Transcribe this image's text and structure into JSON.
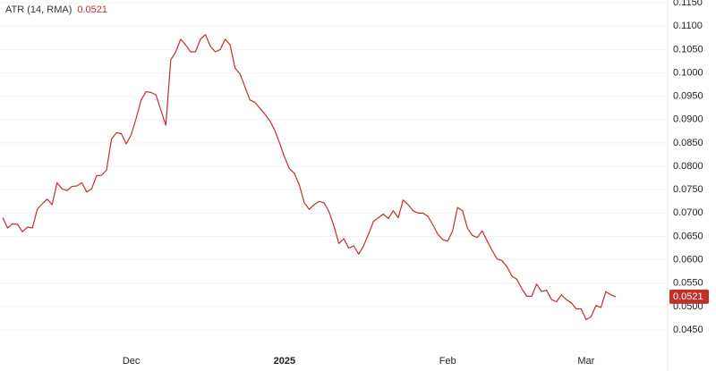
{
  "chart_data": {
    "type": "line",
    "legend_title": "ATR (14, RMA)",
    "categories": [
      null,
      null,
      null,
      null,
      null,
      null,
      null,
      null,
      null,
      null,
      null,
      null,
      null,
      null,
      null,
      null,
      null,
      null,
      null,
      null,
      null,
      null,
      null,
      null,
      null,
      null,
      "Dec",
      null,
      null,
      null,
      null,
      null,
      null,
      null,
      null,
      null,
      null,
      null,
      null,
      null,
      null,
      null,
      null,
      null,
      null,
      null,
      null,
      null,
      null,
      null,
      null,
      null,
      null,
      null,
      null,
      null,
      null,
      "2025",
      null,
      null,
      null,
      null,
      null,
      null,
      null,
      null,
      null,
      null,
      null,
      null,
      null,
      null,
      null,
      null,
      null,
      null,
      null,
      null,
      null,
      null,
      null,
      null,
      null,
      null,
      null,
      null,
      null,
      null,
      null,
      null,
      "Feb",
      null,
      null,
      null,
      null,
      null,
      null,
      null,
      null,
      null,
      null,
      null,
      null,
      null,
      null,
      null,
      null,
      null,
      null,
      null,
      null,
      null,
      null,
      null,
      null,
      null,
      null,
      null,
      "Mar",
      null,
      null,
      null,
      null,
      null,
      null
    ],
    "series": [
      {
        "name": "ATR (14, RMA)",
        "color": "#c0312b",
        "values": [
          0.069,
          0.0668,
          0.0677,
          0.0676,
          0.066,
          0.067,
          0.0668,
          0.0708,
          0.072,
          0.073,
          0.0718,
          0.0765,
          0.0752,
          0.0748,
          0.0757,
          0.0758,
          0.0765,
          0.0745,
          0.0752,
          0.078,
          0.0781,
          0.0792,
          0.0858,
          0.0872,
          0.087,
          0.0848,
          0.0868,
          0.0903,
          0.0942,
          0.096,
          0.0958,
          0.0953,
          0.092,
          0.0888,
          0.1028,
          0.1045,
          0.1072,
          0.106,
          0.1045,
          0.1045,
          0.1072,
          0.1082,
          0.1057,
          0.1045,
          0.105,
          0.1072,
          0.106,
          0.101,
          0.0998,
          0.097,
          0.0942,
          0.0937,
          0.0925,
          0.0912,
          0.0898,
          0.0878,
          0.085,
          0.082,
          0.0795,
          0.0785,
          0.076,
          0.0722,
          0.0708,
          0.0718,
          0.0725,
          0.0722,
          0.0703,
          0.0672,
          0.0635,
          0.0645,
          0.0625,
          0.063,
          0.0612,
          0.063,
          0.0655,
          0.0682,
          0.069,
          0.0698,
          0.0688,
          0.0705,
          0.069,
          0.0728,
          0.0718,
          0.0705,
          0.07,
          0.07,
          0.0693,
          0.0675,
          0.0655,
          0.0643,
          0.064,
          0.0662,
          0.0712,
          0.0705,
          0.0668,
          0.0652,
          0.0648,
          0.0662,
          0.064,
          0.062,
          0.0602,
          0.0598,
          0.0585,
          0.0565,
          0.0558,
          0.0538,
          0.0522,
          0.0522,
          0.0548,
          0.0532,
          0.0535,
          0.0515,
          0.051,
          0.0525,
          0.0515,
          0.0508,
          0.0495,
          0.0495,
          0.0472,
          0.0478,
          0.0502,
          0.0498,
          0.0532,
          0.0525,
          0.0521
        ]
      }
    ],
    "ylim": [
      0.0362,
      0.1156
    ],
    "yticks": [
      {
        "value": 0.115,
        "label": "0.1150"
      },
      {
        "value": 0.11,
        "label": "0.1100"
      },
      {
        "value": 0.105,
        "label": "0.1050"
      },
      {
        "value": 0.1,
        "label": "0.1000"
      },
      {
        "value": 0.095,
        "label": "0.0950"
      },
      {
        "value": 0.09,
        "label": "0.0900"
      },
      {
        "value": 0.085,
        "label": "0.0850"
      },
      {
        "value": 0.08,
        "label": "0.0800"
      },
      {
        "value": 0.075,
        "label": "0.0750"
      },
      {
        "value": 0.07,
        "label": "0.0700"
      },
      {
        "value": 0.065,
        "label": "0.0650"
      },
      {
        "value": 0.06,
        "label": "0.0600"
      },
      {
        "value": 0.055,
        "label": "0.0550"
      },
      {
        "value": 0.05,
        "label": "0.0500"
      },
      {
        "value": 0.045,
        "label": "0.0450"
      }
    ],
    "grid": true
  }
}
